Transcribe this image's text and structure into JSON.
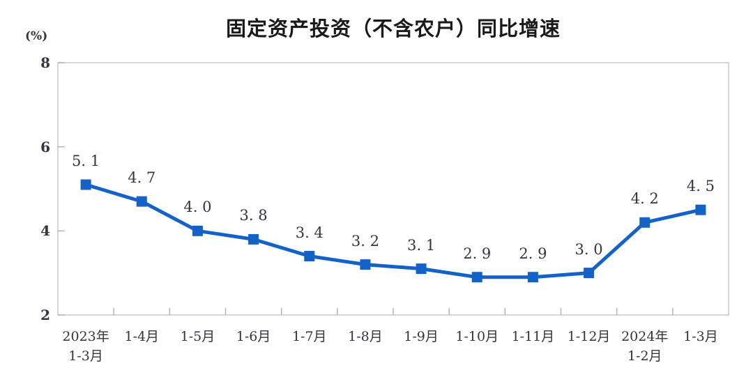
{
  "page": {
    "background": "#ffffff"
  },
  "chart_data": {
    "type": "line",
    "title": "固定资产投资（不含农户）同比增速",
    "unit_label": "(%)",
    "categories": [
      [
        "2023年",
        "1-3月"
      ],
      [
        "1-4月"
      ],
      [
        "1-5月"
      ],
      [
        "1-6月"
      ],
      [
        "1-7月"
      ],
      [
        "1-8月"
      ],
      [
        "1-9月"
      ],
      [
        "1-10月"
      ],
      [
        "1-11月"
      ],
      [
        "1-12月"
      ],
      [
        "2024年",
        "1-2月"
      ],
      [
        "1-3月"
      ]
    ],
    "values": [
      5.1,
      4.7,
      4.0,
      3.8,
      3.4,
      3.2,
      3.1,
      2.9,
      2.9,
      3.0,
      4.2,
      4.5
    ],
    "point_labels": [
      "5. 1",
      "4. 7",
      "4. 0",
      "3. 8",
      "3. 4",
      "3. 2",
      "3. 1",
      "2. 9",
      "2. 9",
      "3. 0",
      "4. 2",
      "4. 5"
    ],
    "ylim": [
      2,
      8
    ],
    "yticks": [
      8,
      6,
      4,
      2
    ],
    "grid": false,
    "legend": "none",
    "line_color": "#1262c8",
    "marker": "square",
    "marker_color": "#1262c8",
    "axis_color": "#c8c8c8",
    "tick_color": "#b5b5b5",
    "label_color": "#33343f",
    "title_color": "#1a1a1a"
  }
}
